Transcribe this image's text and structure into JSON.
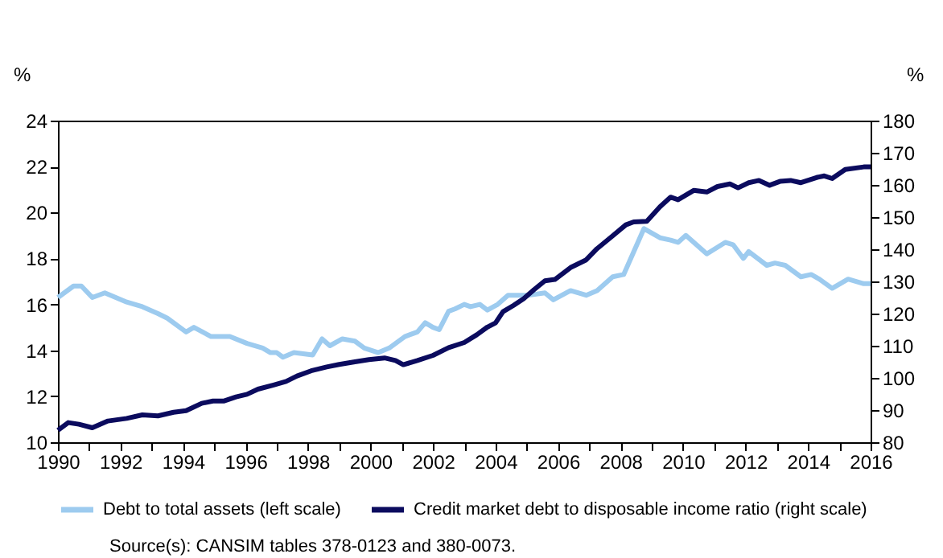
{
  "chart_data": {
    "type": "line",
    "ylabel": "%",
    "y2label": "%",
    "xlim": [
      1990,
      2016
    ],
    "xticks": [
      1990,
      {
        "value": 1991,
        "label": null
      },
      1992,
      {
        "value": 1993,
        "label": null
      },
      1994,
      {
        "value": 1995,
        "label": null
      },
      1996,
      {
        "value": 1997,
        "label": null
      },
      1998,
      {
        "value": 1999,
        "label": null
      },
      2000,
      {
        "value": 2001,
        "label": null
      },
      2002,
      {
        "value": 2003,
        "label": null
      },
      2004,
      {
        "value": 2005,
        "label": null
      },
      2006,
      {
        "value": 2007,
        "label": null
      },
      2008,
      {
        "value": 2009,
        "label": null
      },
      2010,
      {
        "value": 2011,
        "label": null
      },
      2012,
      {
        "value": 2013,
        "label": null
      },
      2014,
      {
        "value": 2015,
        "label": null
      },
      2016
    ],
    "ylim": [
      10,
      24
    ],
    "yticks": [
      10,
      12,
      14,
      16,
      18,
      20,
      22,
      24
    ],
    "y2lim": [
      80,
      180
    ],
    "y2ticks": [
      80,
      90,
      100,
      110,
      120,
      130,
      140,
      150,
      160,
      170,
      180
    ],
    "grid": false,
    "legend": "bottom",
    "line_style": "solid",
    "marker": "none",
    "series": [
      {
        "name": "Debt to total assets (left scale)",
        "color": "#9dcbef",
        "x": [
          1990,
          1990.5,
          1990.75,
          1991.1,
          1991.5,
          1992.2,
          1992.7,
          1993.2,
          1993.5,
          1994.1,
          1994.35,
          1994.9,
          1995.5,
          1996.05,
          1996.55,
          1996.8,
          1997.0,
          1997.2,
          1997.55,
          1998.15,
          1998.45,
          1998.7,
          1999.1,
          1999.5,
          1999.8,
          2000.25,
          2000.6,
          2001.1,
          2001.5,
          2001.75,
          2002.0,
          2002.2,
          2002.5,
          2002.7,
          2003.0,
          2003.2,
          2003.5,
          2003.74,
          2004.07,
          2004.4,
          2005.07,
          2005.58,
          2005.85,
          2006.4,
          2006.9,
          2007.25,
          2007.75,
          2008.1,
          2008.75,
          2009.26,
          2009.6,
          2009.84,
          2010.09,
          2010.76,
          2011.35,
          2011.6,
          2011.93,
          2012.1,
          2012.68,
          2012.94,
          2013.27,
          2013.77,
          2014.1,
          2014.36,
          2014.77,
          2015.28,
          2015.78,
          2016
        ],
        "values": [
          16.3,
          16.8,
          16.8,
          16.3,
          16.5,
          16.1,
          15.9,
          15.6,
          15.4,
          14.8,
          15.0,
          14.6,
          14.6,
          14.3,
          14.1,
          13.9,
          13.9,
          13.7,
          13.9,
          13.8,
          14.5,
          14.2,
          14.5,
          14.4,
          14.1,
          13.9,
          14.1,
          14.6,
          14.8,
          15.2,
          15.0,
          14.9,
          15.7,
          15.8,
          16.0,
          15.9,
          16.0,
          15.75,
          16.0,
          16.4,
          16.4,
          16.5,
          16.2,
          16.6,
          16.4,
          16.6,
          17.2,
          17.3,
          19.3,
          18.9,
          18.8,
          18.7,
          19.0,
          18.2,
          18.7,
          18.6,
          18.0,
          18.3,
          17.7,
          17.8,
          17.7,
          17.2,
          17.3,
          17.1,
          16.7,
          17.1,
          16.9,
          16.9
        ]
      },
      {
        "name": "Credit market debt to disposable income ratio (right scale)",
        "color": "#0b0b5e",
        "axis": "y2",
        "x": [
          1990,
          1990.33,
          1990.67,
          1991.1,
          1991.6,
          1992.2,
          1992.7,
          1993.2,
          1993.7,
          1994.1,
          1994.6,
          1994.96,
          1995.3,
          1995.7,
          1996.05,
          1996.4,
          1996.9,
          1997.3,
          1997.65,
          1998.1,
          1998.6,
          1999.0,
          1999.5,
          1999.95,
          2000.45,
          2000.8,
          2001.05,
          2001.5,
          2002.0,
          2002.5,
          2003.0,
          2003.4,
          2003.74,
          2004.0,
          2004.24,
          2004.57,
          2004.9,
          2005.24,
          2005.58,
          2005.9,
          2006.4,
          2006.9,
          2007.25,
          2007.75,
          2008.17,
          2008.42,
          2008.84,
          2009.26,
          2009.6,
          2009.84,
          2010.34,
          2010.76,
          2011.1,
          2011.5,
          2011.76,
          2012.1,
          2012.43,
          2012.77,
          2013.1,
          2013.44,
          2013.77,
          2014.27,
          2014.52,
          2014.77,
          2015.19,
          2015.78,
          2016
        ],
        "values": [
          83.7,
          86.1,
          85.6,
          84.5,
          86.6,
          87.4,
          88.5,
          88.2,
          89.3,
          89.8,
          92.1,
          92.8,
          92.8,
          94.1,
          94.9,
          96.5,
          97.8,
          98.9,
          100.6,
          102.2,
          103.4,
          104.2,
          105.0,
          105.7,
          106.2,
          105.4,
          104.1,
          105.4,
          107.0,
          109.4,
          111.0,
          113.4,
          115.8,
          117.1,
          120.6,
          122.5,
          124.6,
          127.5,
          130.2,
          130.6,
          134.3,
          136.7,
          140.2,
          144.2,
          147.6,
          148.5,
          148.7,
          153.2,
          156.2,
          155.4,
          158.3,
          157.8,
          159.5,
          160.3,
          159.1,
          160.7,
          161.4,
          159.9,
          161.1,
          161.4,
          160.7,
          162.3,
          162.8,
          162.0,
          164.8,
          165.6,
          165.6
        ]
      }
    ],
    "annotations": [
      "Source(s): CANSIM tables 378-0123 and 380-0073."
    ]
  }
}
